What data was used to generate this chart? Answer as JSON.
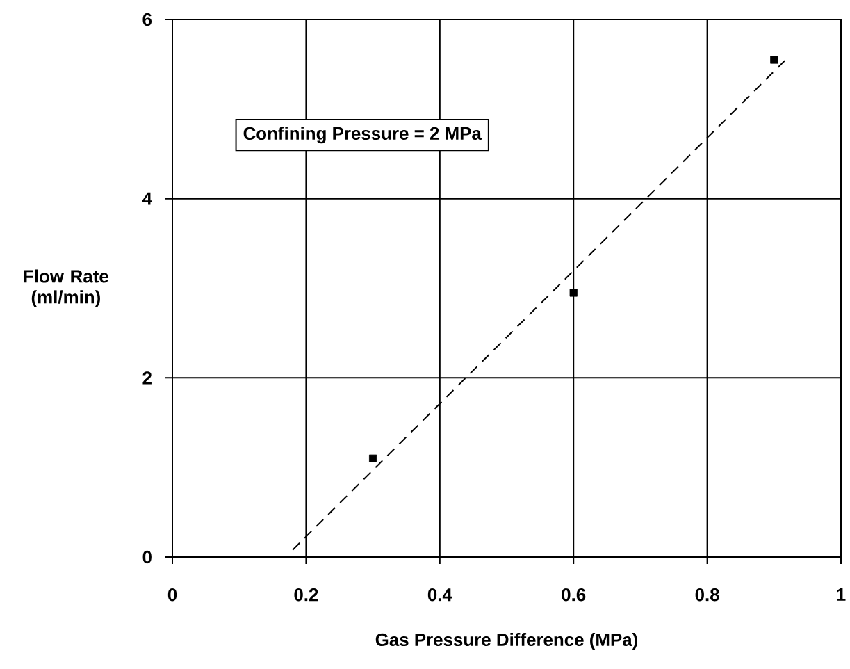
{
  "chart_data": {
    "type": "scatter",
    "xlabel": "Gas Pressure Difference  (MPa)",
    "ylabel": "Flow Rate (ml/min)",
    "xlim": [
      0,
      1
    ],
    "ylim": [
      0,
      6
    ],
    "xticks": [
      0,
      0.2,
      0.4,
      0.6,
      0.8,
      1
    ],
    "yticks": [
      0,
      2,
      4,
      6
    ],
    "grid": true,
    "series": [
      {
        "color": "#000000",
        "marker": "square",
        "x": [
          0.3,
          0.6,
          0.9
        ],
        "values": [
          1.1,
          2.95,
          5.55
        ]
      },
      {
        "type": "line",
        "color": "#000000",
        "line_style": "dashed",
        "marker": "none",
        "x": [
          0.18,
          0.92
        ],
        "values": [
          0.08,
          5.57
        ]
      }
    ],
    "annotations": [
      "Confining Pressure = 2 MPa"
    ]
  }
}
